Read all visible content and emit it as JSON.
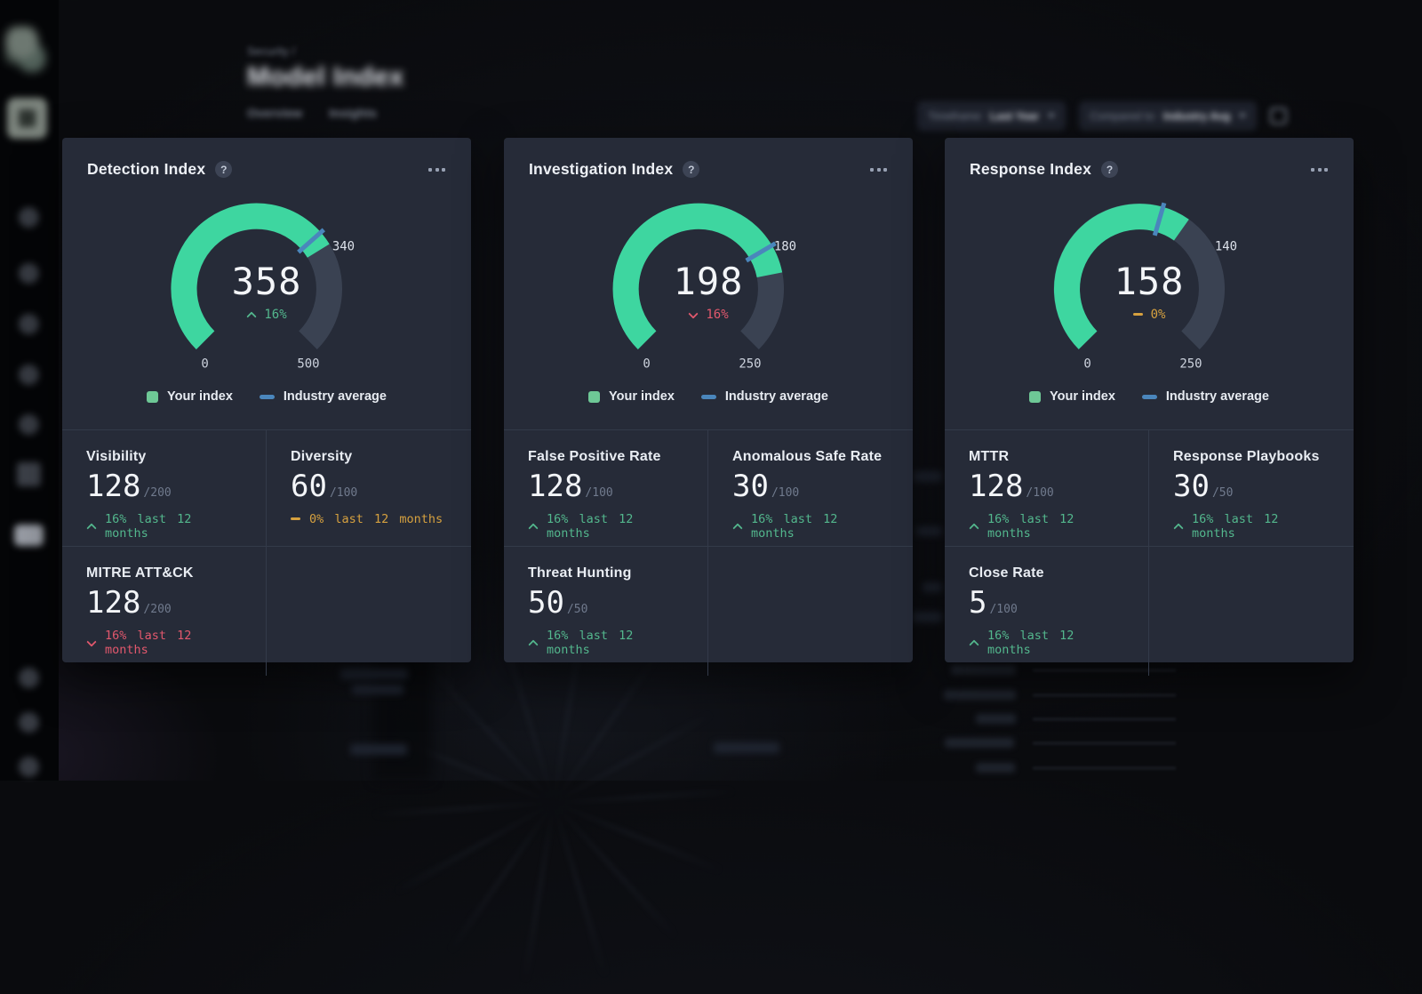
{
  "page": {
    "header": {
      "breadcrumb": "Security /",
      "title": "Model Index",
      "tabs": [
        "Overview",
        "Insights"
      ]
    },
    "filters": [
      {
        "label": "Timeframe:",
        "value": "Last Year"
      },
      {
        "label": "Compared to:",
        "value": "Industry Avg"
      }
    ]
  },
  "ui": {
    "help_glyph": "?"
  },
  "legend": {
    "your": "Your index",
    "industry": "Industry average"
  },
  "colors": {
    "card_bg": "#262b38",
    "accent_green": "#3ed6a0",
    "legend_green": "#6ec896",
    "industry_blue": "#4a86bc",
    "gauge_track": "#3a4252",
    "up_green": "#53b78d",
    "down_red": "#e2586d",
    "flat_amber": "#d6a13f"
  },
  "cards": [
    {
      "title": "Detection Index",
      "gauge": {
        "value": 358,
        "min": 0,
        "max": 500,
        "industry": 340,
        "delta": "16%",
        "trend": "up"
      },
      "metrics": [
        {
          "label": "Visibility",
          "value": "128",
          "denom": "/200",
          "delta": "16% last 12 months",
          "trend": "up"
        },
        {
          "label": "Diversity",
          "value": "60",
          "denom": "/100",
          "delta": "0% last 12 months",
          "trend": "flat"
        },
        {
          "label": "MITRE ATT&CK",
          "value": "128",
          "denom": "/200",
          "delta": "16% last 12 months",
          "trend": "down"
        }
      ]
    },
    {
      "title": "Investigation Index",
      "gauge": {
        "value": 198,
        "min": 0,
        "max": 250,
        "industry": 180,
        "delta": "16%",
        "trend": "down"
      },
      "metrics": [
        {
          "label": "False Positive Rate",
          "value": "128",
          "denom": "/100",
          "delta": "16% last 12 months",
          "trend": "up"
        },
        {
          "label": "Anomalous Safe Rate",
          "value": "30",
          "denom": "/100",
          "delta": "16% last 12 months",
          "trend": "up"
        },
        {
          "label": "Threat Hunting",
          "value": "50",
          "denom": "/50",
          "delta": "16% last 12 months",
          "trend": "up"
        }
      ]
    },
    {
      "title": "Response Index",
      "gauge": {
        "value": 158,
        "min": 0,
        "max": 250,
        "industry": 140,
        "delta": "0%",
        "trend": "flat"
      },
      "metrics": [
        {
          "label": "MTTR",
          "value": "128",
          "denom": "/100",
          "delta": "16% last 12 months",
          "trend": "up"
        },
        {
          "label": "Response Playbooks",
          "value": "30",
          "denom": "/50",
          "delta": "16% last 12 months",
          "trend": "up"
        },
        {
          "label": "Close Rate",
          "value": "5",
          "denom": "/100",
          "delta": "16% last 12 months",
          "trend": "up"
        }
      ]
    }
  ],
  "chart_data": [
    {
      "type": "gauge",
      "title": "Detection Index",
      "value": 358,
      "min": 0,
      "max": 500,
      "industry_average": 340,
      "delta_pct": "16%",
      "trend": "up",
      "legend": [
        "Your index",
        "Industry average"
      ],
      "sweep_deg": 270
    },
    {
      "type": "gauge",
      "title": "Investigation Index",
      "value": 198,
      "min": 0,
      "max": 250,
      "industry_average": 180,
      "delta_pct": "16%",
      "trend": "down",
      "legend": [
        "Your index",
        "Industry average"
      ],
      "sweep_deg": 270
    },
    {
      "type": "gauge",
      "title": "Response Index",
      "value": 158,
      "min": 0,
      "max": 250,
      "industry_average": 140,
      "delta_pct": "0%",
      "trend": "flat",
      "legend": [
        "Your index",
        "Industry average"
      ],
      "sweep_deg": 270
    }
  ]
}
